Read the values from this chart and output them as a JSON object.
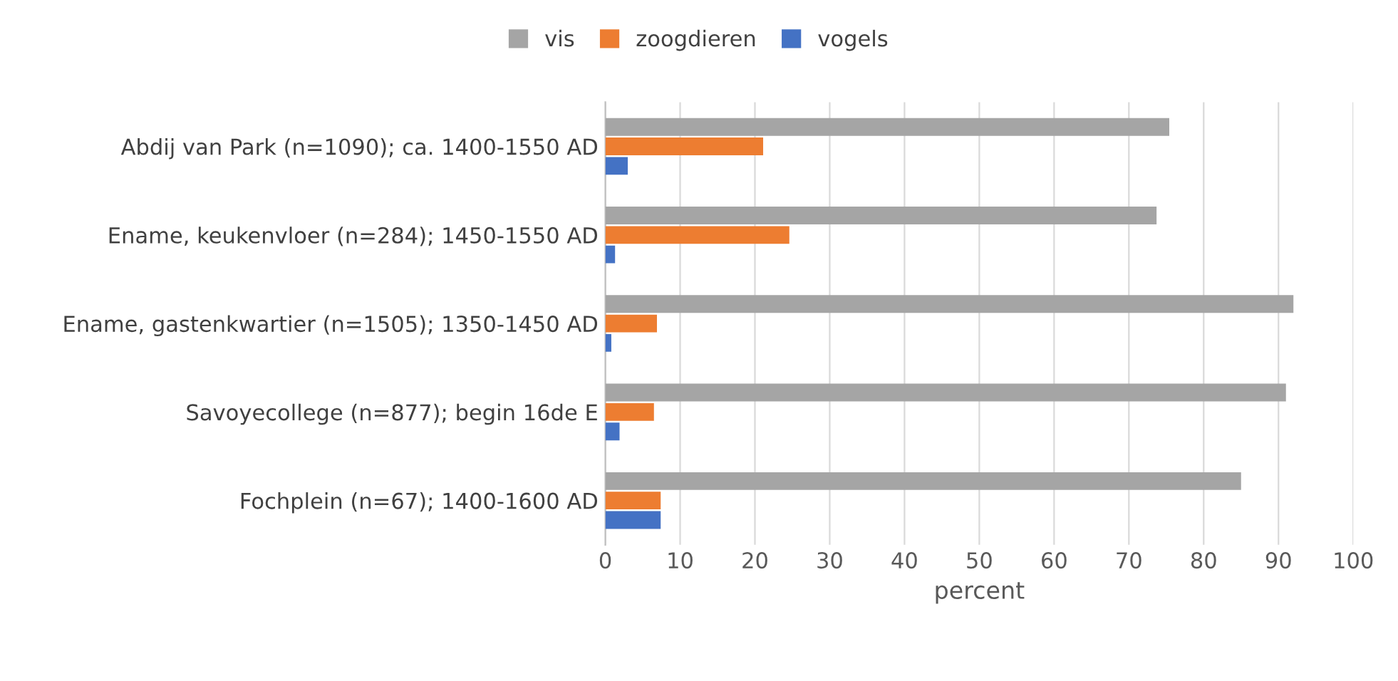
{
  "chart_data": {
    "type": "bar",
    "orientation": "horizontal",
    "xlabel": "percent",
    "categories": [
      "Abdij van Park (n=1090); ca. 1400-1550 AD",
      "Ename, keukenvloer (n=284); 1450-1550 AD",
      "Ename, gastenkwartier (n=1505); 1350-1450 AD",
      "Savoyecollege (n=877); begin 16de E",
      "Fochplein (n=67); 1400-1600 AD"
    ],
    "series": [
      {
        "name": "vis",
        "color": "#a5a5a5",
        "values": [
          75.4,
          73.7,
          92,
          91,
          85
        ]
      },
      {
        "name": "zoogdieren",
        "color": "#ed7d31",
        "values": [
          21.1,
          24.6,
          6.9,
          6.5,
          7.4
        ]
      },
      {
        "name": "vogels",
        "color": "#4472c4",
        "values": [
          3.0,
          1.3,
          0.8,
          1.9,
          7.4
        ]
      }
    ],
    "xlim": [
      0,
      100
    ],
    "xticks": [
      0,
      10,
      20,
      30,
      40,
      50,
      60,
      70,
      80,
      90,
      100
    ],
    "grid": "x",
    "legend": "top"
  }
}
